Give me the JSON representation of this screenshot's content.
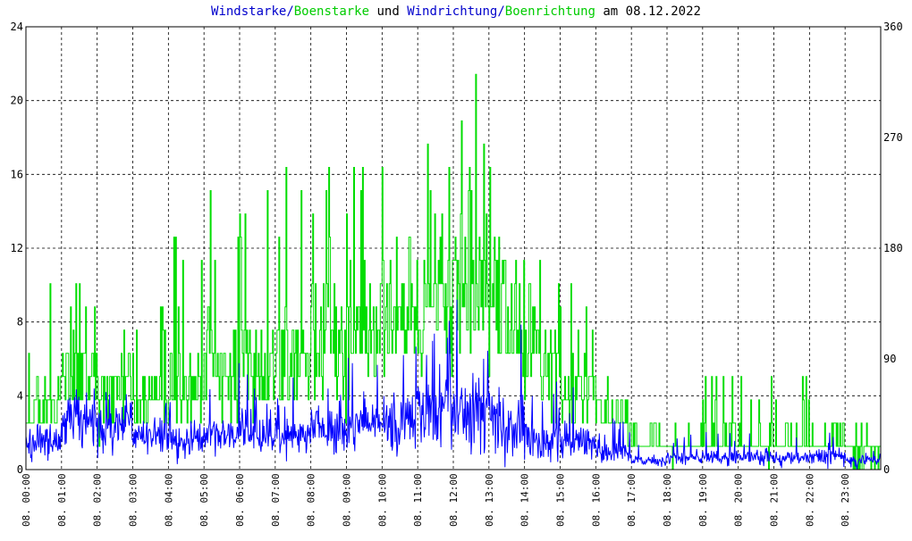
{
  "chart_data": {
    "type": "line",
    "title_parts": [
      {
        "text": "Windstarke",
        "color": "#0000cc"
      },
      {
        "text": "/",
        "color": "#0000cc"
      },
      {
        "text": "Boenstarke",
        "color": "#00cc00"
      },
      {
        "text": " und ",
        "color": "#000000"
      },
      {
        "text": "Windrichtung",
        "color": "#0000cc"
      },
      {
        "text": "/",
        "color": "#0000cc"
      },
      {
        "text": "Boenrichtung",
        "color": "#00cc00"
      },
      {
        "text": " am 08.12.2022",
        "color": "#000000"
      }
    ],
    "left_axis": {
      "ticks": [
        "0",
        "4",
        "8",
        "12",
        "16",
        "20",
        "24"
      ],
      "ylim": [
        0,
        24
      ]
    },
    "right_axis": {
      "ticks": [
        "0",
        "90",
        "180",
        "270",
        "360"
      ],
      "ylim": [
        0,
        360
      ]
    },
    "x_ticks": [
      "08. 00:00",
      "08. 01:00",
      "08. 02:00",
      "08. 03:00",
      "08. 04:00",
      "08. 05:00",
      "08. 06:00",
      "08. 07:00",
      "08. 08:00",
      "08. 09:00",
      "08. 10:00",
      "08. 11:00",
      "08. 12:00",
      "08. 13:00",
      "08. 14:00",
      "08. 15:00",
      "08. 16:00",
      "08. 17:00",
      "08. 18:00",
      "08. 19:00",
      "08. 20:00",
      "08. 21:00",
      "08. 22:00",
      "08. 23:00"
    ],
    "xlim_hours": [
      0,
      24
    ],
    "grid": true,
    "colors": {
      "wind": "#0000ff",
      "gust": "#00dd00",
      "direction": "#0000ff",
      "gust_direction": "#22dd22"
    },
    "wind_speed_hourly_avg": [
      1.4,
      2.6,
      2.2,
      1.8,
      1.5,
      1.8,
      2.0,
      1.9,
      2.2,
      2.4,
      2.6,
      3.0,
      3.4,
      2.6,
      1.6,
      1.4,
      0.9,
      0.5,
      0.6,
      0.7,
      0.7,
      0.6,
      0.7,
      0.5
    ],
    "wind_speed_hourly_max": [
      2.5,
      4.5,
      4.5,
      4.0,
      4.0,
      6.0,
      6.0,
      5.5,
      6.5,
      7.5,
      8.5,
      9.0,
      10.0,
      9.0,
      5.0,
      4.5,
      3.0,
      1.8,
      2.0,
      2.5,
      2.2,
      2.0,
      2.0,
      1.5
    ],
    "gust_speed_hourly_avg": [
      3.5,
      5.0,
      4.0,
      3.5,
      4.0,
      6.0,
      5.5,
      5.5,
      6.5,
      7.0,
      8.0,
      9.5,
      10.0,
      8.5,
      6.0,
      4.5,
      3.0,
      1.5,
      1.2,
      1.5,
      1.5,
      1.5,
      1.5,
      0.8
    ],
    "gust_speed_hourly_max": [
      10.1,
      10.1,
      8.8,
      8.8,
      12.6,
      15.1,
      15.1,
      16.4,
      16.4,
      17.6,
      17.6,
      20.2,
      23.0,
      17.6,
      12.6,
      10.1,
      5.0,
      2.5,
      2.5,
      5.0,
      5.0,
      5.0,
      2.5,
      2.5
    ],
    "direction_hourly_center_deg": [
      280,
      270,
      275,
      265,
      290,
      285,
      270,
      280,
      290,
      280,
      275,
      280,
      280,
      260,
      260,
      250,
      250,
      190,
      120,
      150,
      320,
      270,
      100,
      110
    ],
    "direction_hourly_spread_deg": [
      50,
      45,
      45,
      45,
      40,
      40,
      45,
      45,
      40,
      45,
      45,
      45,
      50,
      45,
      40,
      40,
      40,
      60,
      50,
      50,
      30,
      60,
      15,
      15
    ]
  }
}
